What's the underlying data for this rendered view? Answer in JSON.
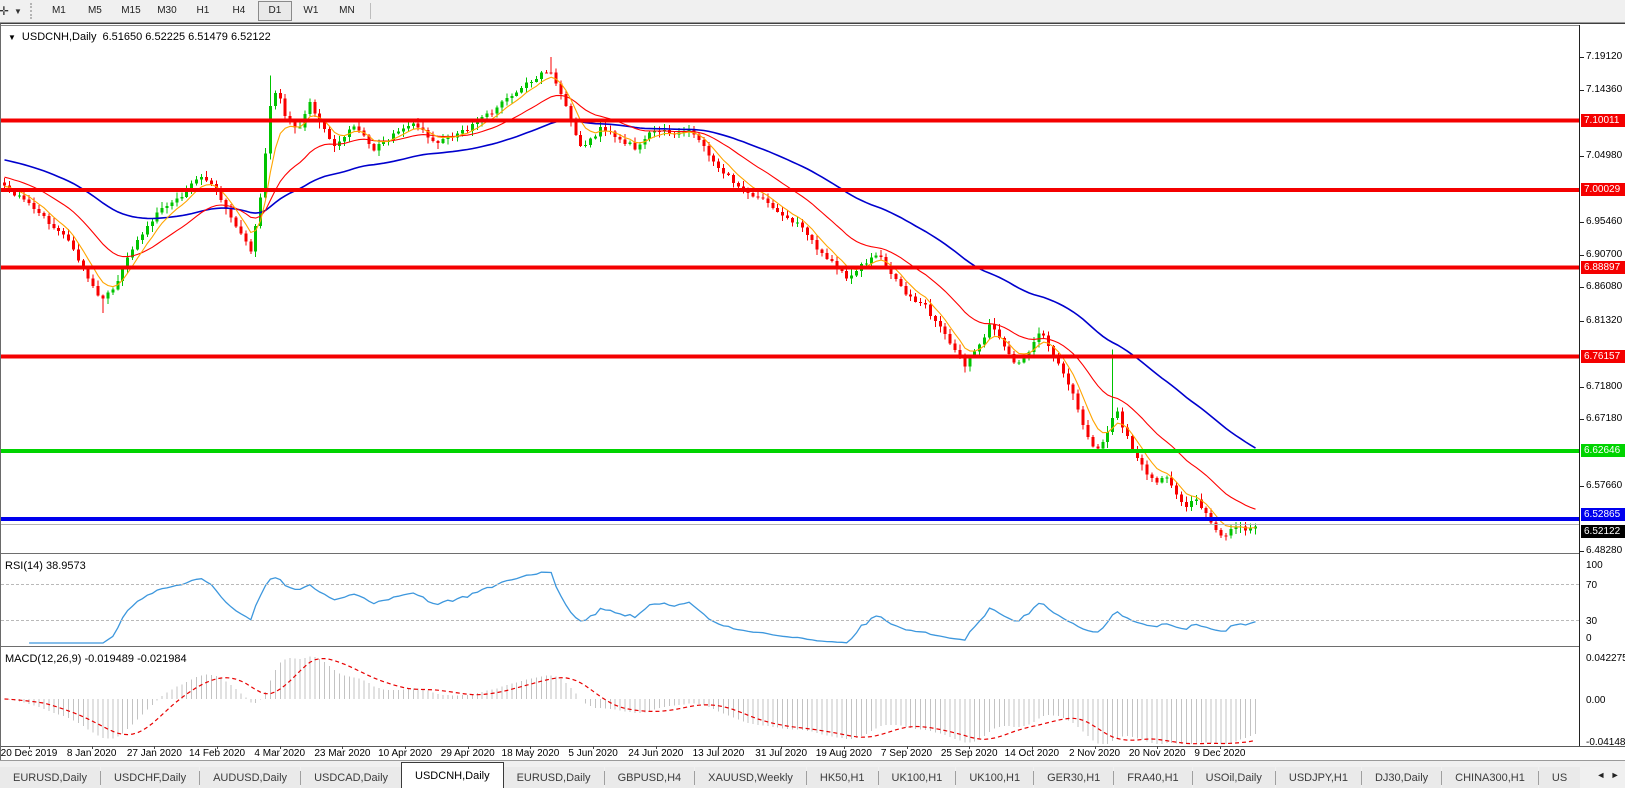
{
  "toolbar": {
    "drawing_tool_glyph": "✛",
    "timeframes": [
      "M1",
      "M5",
      "M15",
      "M30",
      "H1",
      "H4",
      "D1",
      "W1",
      "MN"
    ],
    "active_timeframe": "D1"
  },
  "header": {
    "symbol": "USDCNH,Daily",
    "ohlc_text": "6.51650 6.52225 6.51479 6.52122"
  },
  "price_axis": {
    "ticks": [
      {
        "label": "7.19120",
        "price": 7.1912
      },
      {
        "label": "7.14360",
        "price": 7.1436
      },
      {
        "label": "7.04980",
        "price": 7.0498
      },
      {
        "label": "6.95460",
        "price": 6.9546
      },
      {
        "label": "6.90700",
        "price": 6.907
      },
      {
        "label": "6.86080",
        "price": 6.8608
      },
      {
        "label": "6.81320",
        "price": 6.8132
      },
      {
        "label": "6.71800",
        "price": 6.718
      },
      {
        "label": "6.67180",
        "price": 6.6718
      },
      {
        "label": "6.57660",
        "price": 6.5766
      },
      {
        "label": "6.48280",
        "price": 6.4828
      }
    ]
  },
  "levels": [
    {
      "label": "7.10011",
      "price": 7.10011,
      "color": "#f40000",
      "thickness": 4
    },
    {
      "label": "7.00029",
      "price": 7.00029,
      "color": "#f40000",
      "thickness": 4
    },
    {
      "label": "6.88897",
      "price": 6.88897,
      "color": "#f40000",
      "thickness": 4
    },
    {
      "label": "6.76157",
      "price": 6.76157,
      "color": "#f40000",
      "thickness": 4
    },
    {
      "label": "6.62646",
      "price": 6.62646,
      "color": "#00d400",
      "thickness": 4
    },
    {
      "label": "6.52865",
      "price": 6.52865,
      "color": "#0000ee",
      "thickness": 4
    }
  ],
  "current_price": {
    "label": "6.52122",
    "price": 6.52122,
    "line_color": "#b4b4b4",
    "badge_color": "#000000"
  },
  "rsi": {
    "label": "RSI(14) 38.9573",
    "period": 14,
    "value": 38.9573,
    "scale_labels": [
      {
        "label": "100",
        "v": 100
      },
      {
        "label": "70",
        "v": 70
      },
      {
        "label": "30",
        "v": 30
      },
      {
        "label": "0",
        "v": 0
      }
    ],
    "dashed_levels": [
      70,
      30
    ],
    "line_color": "#3d97dd"
  },
  "macd": {
    "label": "MACD(12,26,9) -0.019489 -0.021984",
    "fast": 12,
    "slow": 26,
    "signal": 9,
    "macd_value": -0.019489,
    "signal_value": -0.021984,
    "scale_labels": [
      {
        "label": "0.042275",
        "v": 0.042275
      },
      {
        "label": "0.00",
        "v": 0
      },
      {
        "label": "-0.04148",
        "v": -0.04148
      }
    ],
    "hist_color": "#c3c3c3",
    "signal_color": "#e80000"
  },
  "date_axis": [
    "20 Dec 2019",
    "8 Jan 2020",
    "27 Jan 2020",
    "14 Feb 2020",
    "4 Mar 2020",
    "23 Mar 2020",
    "10 Apr 2020",
    "29 Apr 2020",
    "18 May 2020",
    "5 Jun 2020",
    "24 Jun 2020",
    "13 Jul 2020",
    "31 Jul 2020",
    "19 Aug 2020",
    "7 Sep 2020",
    "25 Sep 2020",
    "14 Oct 2020",
    "2 Nov 2020",
    "20 Nov 2020",
    "9 Dec 2020"
  ],
  "tabs": [
    {
      "label": "EURUSD,Daily",
      "active": false
    },
    {
      "label": "USDCHF,Daily",
      "active": false
    },
    {
      "label": "AUDUSD,Daily",
      "active": false
    },
    {
      "label": "USDCAD,Daily",
      "active": false
    },
    {
      "label": "USDCNH,Daily",
      "active": true
    },
    {
      "label": "EURUSD,Daily",
      "active": false
    },
    {
      "label": "GBPUSD,H4",
      "active": false
    },
    {
      "label": "XAUUSD,Weekly",
      "active": false
    },
    {
      "label": "HK50,H1",
      "active": false
    },
    {
      "label": "UK100,H1",
      "active": false
    },
    {
      "label": "UK100,H1",
      "active": false
    },
    {
      "label": "GER30,H1",
      "active": false
    },
    {
      "label": "FRA40,H1",
      "active": false
    },
    {
      "label": "USOil,Daily",
      "active": false
    },
    {
      "label": "USDJPY,H1",
      "active": false
    },
    {
      "label": "DJ30,Daily",
      "active": false
    },
    {
      "label": "CHINA300,H1",
      "active": false
    },
    {
      "label": "US",
      "active": false
    }
  ],
  "tab_scroll": {
    "left": "◄",
    "right": "►"
  },
  "chart_data": {
    "type": "candlestick",
    "symbol": "USDCNH",
    "timeframe": "Daily",
    "visible_ohlc": {
      "open": 6.5165,
      "high": 6.52225,
      "low": 6.51479,
      "close": 6.52122
    },
    "y_range": [
      6.4828,
      7.1912
    ],
    "candle_count": 255,
    "bull_color": "#00c300",
    "bear_color": "#f80000",
    "ma_fast_color": "#ffa500",
    "ma_mid_color": "#ff0000",
    "ma_slow_color": "#0000cd",
    "price_path": [
      [
        0,
        7.005
      ],
      [
        0.025,
        6.972
      ],
      [
        0.05,
        6.932
      ],
      [
        0.068,
        6.872
      ],
      [
        0.078,
        6.843
      ],
      [
        0.09,
        6.868
      ],
      [
        0.105,
        6.928
      ],
      [
        0.122,
        6.966
      ],
      [
        0.14,
        6.99
      ],
      [
        0.155,
        7.022
      ],
      [
        0.168,
        7.002
      ],
      [
        0.183,
        6.958
      ],
      [
        0.197,
        6.912
      ],
      [
        0.205,
        6.99
      ],
      [
        0.212,
        7.115
      ],
      [
        0.218,
        7.152
      ],
      [
        0.225,
        7.1
      ],
      [
        0.235,
        7.085
      ],
      [
        0.243,
        7.128
      ],
      [
        0.252,
        7.096
      ],
      [
        0.265,
        7.062
      ],
      [
        0.28,
        7.094
      ],
      [
        0.295,
        7.058
      ],
      [
        0.312,
        7.08
      ],
      [
        0.328,
        7.094
      ],
      [
        0.345,
        7.068
      ],
      [
        0.365,
        7.082
      ],
      [
        0.385,
        7.106
      ],
      [
        0.405,
        7.134
      ],
      [
        0.425,
        7.162
      ],
      [
        0.436,
        7.175
      ],
      [
        0.448,
        7.122
      ],
      [
        0.462,
        7.058
      ],
      [
        0.476,
        7.088
      ],
      [
        0.49,
        7.076
      ],
      [
        0.505,
        7.06
      ],
      [
        0.52,
        7.088
      ],
      [
        0.535,
        7.078
      ],
      [
        0.55,
        7.086
      ],
      [
        0.565,
        7.048
      ],
      [
        0.578,
        7.02
      ],
      [
        0.592,
        6.998
      ],
      [
        0.607,
        6.988
      ],
      [
        0.622,
        6.966
      ],
      [
        0.636,
        6.948
      ],
      [
        0.65,
        6.916
      ],
      [
        0.662,
        6.896
      ],
      [
        0.674,
        6.872
      ],
      [
        0.687,
        6.896
      ],
      [
        0.698,
        6.91
      ],
      [
        0.71,
        6.876
      ],
      [
        0.722,
        6.847
      ],
      [
        0.735,
        6.836
      ],
      [
        0.748,
        6.803
      ],
      [
        0.758,
        6.778
      ],
      [
        0.768,
        6.747
      ],
      [
        0.778,
        6.776
      ],
      [
        0.788,
        6.806
      ],
      [
        0.798,
        6.782
      ],
      [
        0.808,
        6.747
      ],
      [
        0.818,
        6.768
      ],
      [
        0.828,
        6.798
      ],
      [
        0.838,
        6.766
      ],
      [
        0.848,
        6.734
      ],
      [
        0.856,
        6.7
      ],
      [
        0.864,
        6.654
      ],
      [
        0.872,
        6.627
      ],
      [
        0.88,
        6.645
      ],
      [
        0.888,
        6.688
      ],
      [
        0.896,
        6.652
      ],
      [
        0.904,
        6.623
      ],
      [
        0.912,
        6.598
      ],
      [
        0.92,
        6.578
      ],
      [
        0.928,
        6.594
      ],
      [
        0.936,
        6.568
      ],
      [
        0.944,
        6.544
      ],
      [
        0.952,
        6.558
      ],
      [
        0.96,
        6.538
      ],
      [
        0.968,
        6.514
      ],
      [
        0.976,
        6.504
      ],
      [
        0.984,
        6.519
      ],
      [
        0.992,
        6.513
      ],
      [
        1,
        6.521
      ]
    ],
    "wick_events": [
      {
        "f": 0.436,
        "high": 7.1912
      },
      {
        "f": 0.212,
        "high": 7.165
      },
      {
        "f": 0.885,
        "high": 6.772
      },
      {
        "f": 0.078,
        "low": 6.824
      },
      {
        "f": 0.976,
        "low": 6.498
      }
    ]
  }
}
